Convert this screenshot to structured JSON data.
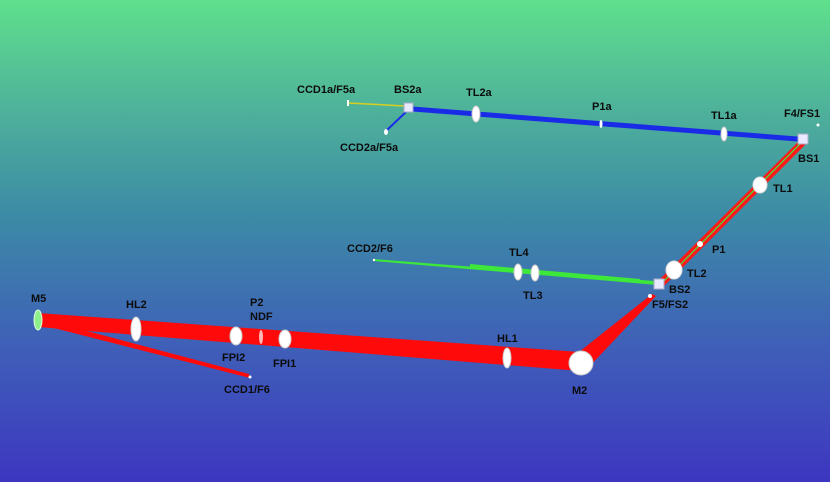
{
  "labels": {
    "ccd1a_f5a": "CCD1a/F5a",
    "bs2a": "BS2a",
    "tl2a": "TL2a",
    "p1a": "P1a",
    "tl1a": "TL1a",
    "f4_fs1": "F4/FS1",
    "ccd2a_f5a": "CCD2a/F5a",
    "bs1": "BS1",
    "tl1": "TL1",
    "ccd2_f6": "CCD2/F6",
    "tl4": "TL4",
    "p1": "P1",
    "tl2": "TL2",
    "bs2": "BS2",
    "tl3": "TL3",
    "f5_fs2": "F5/FS2",
    "m5": "M5",
    "hl2": "HL2",
    "p2": "P2",
    "ndf": "NDF",
    "fpi2": "FPI2",
    "fpi1": "FPI1",
    "hl1": "HL1",
    "ccd1_f6": "CCD1/F6",
    "m2": "M2"
  },
  "colors": {
    "red_beam": "#ff0a0a",
    "blue_beam": "#1a2be8",
    "green_beam": "#3de83a",
    "yellow_beam": "#d8d020",
    "optic": "#ffffff"
  }
}
